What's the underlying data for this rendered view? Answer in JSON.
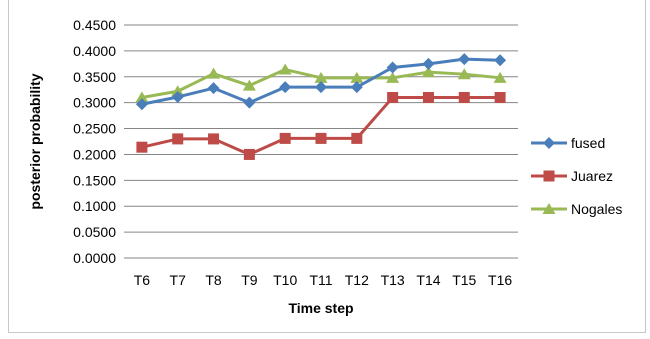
{
  "chart_data": {
    "type": "line",
    "title": "",
    "xlabel": "Time step",
    "ylabel": "posterior probability",
    "categories": [
      "T6",
      "T7",
      "T8",
      "T9",
      "T10",
      "T11",
      "T12",
      "T13",
      "T14",
      "T15",
      "T16"
    ],
    "ylim": [
      0,
      0.45
    ],
    "yticks": [
      "0.0000",
      "0.0500",
      "0.1000",
      "0.1500",
      "0.2000",
      "0.2500",
      "0.3000",
      "0.3500",
      "0.4000",
      "0.4500"
    ],
    "grid": true,
    "legend_position": "right",
    "series": [
      {
        "name": "fused",
        "color": "#4A7EBB",
        "marker": "diamond",
        "values": [
          0.297,
          0.311,
          0.328,
          0.3,
          0.33,
          0.33,
          0.33,
          0.368,
          0.375,
          0.384,
          0.382
        ]
      },
      {
        "name": "Juarez",
        "color": "#BE4B48",
        "marker": "square",
        "values": [
          0.214,
          0.23,
          0.23,
          0.2,
          0.231,
          0.231,
          0.231,
          0.31,
          0.31,
          0.31,
          0.31
        ]
      },
      {
        "name": "Nogales",
        "color": "#98B954",
        "marker": "triangle",
        "values": [
          0.31,
          0.322,
          0.356,
          0.333,
          0.364,
          0.348,
          0.348,
          0.348,
          0.359,
          0.355,
          0.348
        ]
      }
    ]
  }
}
